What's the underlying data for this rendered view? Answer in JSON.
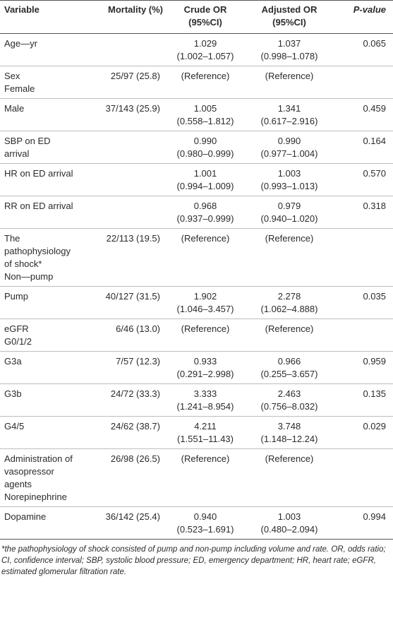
{
  "table": {
    "headers": {
      "variable": "Variable",
      "mortality": "Mortality (%)",
      "crude_or": [
        "Crude OR",
        "(95%CI)"
      ],
      "adjusted_or": [
        "Adjusted OR",
        "(95%CI)"
      ],
      "p_value": "P-value"
    },
    "rows": [
      {
        "variable": [
          "Age—yr"
        ],
        "mortality": "",
        "crude_or": [
          "1.029",
          "(1.002–1.057)"
        ],
        "adjusted_or": [
          "1.037",
          "(0.998–1.078)"
        ],
        "p_value": "0.065"
      },
      {
        "variable": [
          "Sex",
          "Female"
        ],
        "mortality": "25/97 (25.8)",
        "crude_or": [
          "(Reference)"
        ],
        "adjusted_or": [
          "(Reference)"
        ],
        "p_value": ""
      },
      {
        "variable": [
          "Male"
        ],
        "mortality": "37/143 (25.9)",
        "crude_or": [
          "1.005",
          "(0.558–1.812)"
        ],
        "adjusted_or": [
          "1.341",
          "(0.617–2.916)"
        ],
        "p_value": "0.459"
      },
      {
        "variable": [
          "SBP on ED",
          "arrival"
        ],
        "mortality": "",
        "crude_or": [
          "0.990",
          "(0.980–0.999)"
        ],
        "adjusted_or": [
          "0.990",
          "(0.977–1.004)"
        ],
        "p_value": "0.164"
      },
      {
        "variable": [
          "HR on ED arrival"
        ],
        "mortality": "",
        "crude_or": [
          "1.001",
          "(0.994–1.009)"
        ],
        "adjusted_or": [
          "1.003",
          "(0.993–1.013)"
        ],
        "p_value": "0.570"
      },
      {
        "variable": [
          "RR on ED arrival"
        ],
        "mortality": "",
        "crude_or": [
          "0.968",
          "(0.937–0.999)"
        ],
        "adjusted_or": [
          "0.979",
          "(0.940–1.020)"
        ],
        "p_value": "0.318"
      },
      {
        "variable": [
          "The",
          "pathophysiology",
          "of shock*",
          "Non—pump"
        ],
        "mortality": "22/113 (19.5)",
        "crude_or": [
          "(Reference)"
        ],
        "adjusted_or": [
          "(Reference)"
        ],
        "p_value": ""
      },
      {
        "variable": [
          "Pump"
        ],
        "mortality": "40/127 (31.5)",
        "crude_or": [
          "1.902",
          "(1.046–3.457)"
        ],
        "adjusted_or": [
          "2.278",
          "(1.062–4.888)"
        ],
        "p_value": "0.035"
      },
      {
        "variable": [
          "eGFR",
          "G0/1/2"
        ],
        "mortality": "6/46 (13.0)",
        "crude_or": [
          "(Reference)"
        ],
        "adjusted_or": [
          "(Reference)"
        ],
        "p_value": ""
      },
      {
        "variable": [
          "G3a"
        ],
        "mortality": "7/57 (12.3)",
        "crude_or": [
          "0.933",
          "(0.291–2.998)"
        ],
        "adjusted_or": [
          "0.966",
          "(0.255–3.657)"
        ],
        "p_value": "0.959"
      },
      {
        "variable": [
          "G3b"
        ],
        "mortality": "24/72 (33.3)",
        "crude_or": [
          "3.333",
          "(1.241–8.954)"
        ],
        "adjusted_or": [
          "2.463",
          "(0.756–8.032)"
        ],
        "p_value": "0.135"
      },
      {
        "variable": [
          "G4/5"
        ],
        "mortality": "24/62 (38.7)",
        "crude_or": [
          "4.211",
          "(1.551–11.43)"
        ],
        "adjusted_or": [
          "3.748",
          "(1.148–12.24)"
        ],
        "p_value": "0.029"
      },
      {
        "variable": [
          "Administration of",
          "vasopressor",
          "agents",
          "Norepinephrine"
        ],
        "mortality": "26/98 (26.5)",
        "crude_or": [
          "(Reference)"
        ],
        "adjusted_or": [
          "(Reference)"
        ],
        "p_value": ""
      },
      {
        "variable": [
          "Dopamine"
        ],
        "mortality": "36/142 (25.4)",
        "crude_or": [
          "0.940",
          "(0.523–1.691)"
        ],
        "adjusted_or": [
          "1.003",
          "(0.480–2.094)"
        ],
        "p_value": "0.994"
      }
    ]
  },
  "footnote": "*the pathophysiology of shock consisted of pump and non-pump including volume and rate. OR, odds ratio; CI, confidence interval; SBP, systolic blood pressure; ED, emergency department; HR, heart rate; eGFR, estimated glomerular filtration rate."
}
